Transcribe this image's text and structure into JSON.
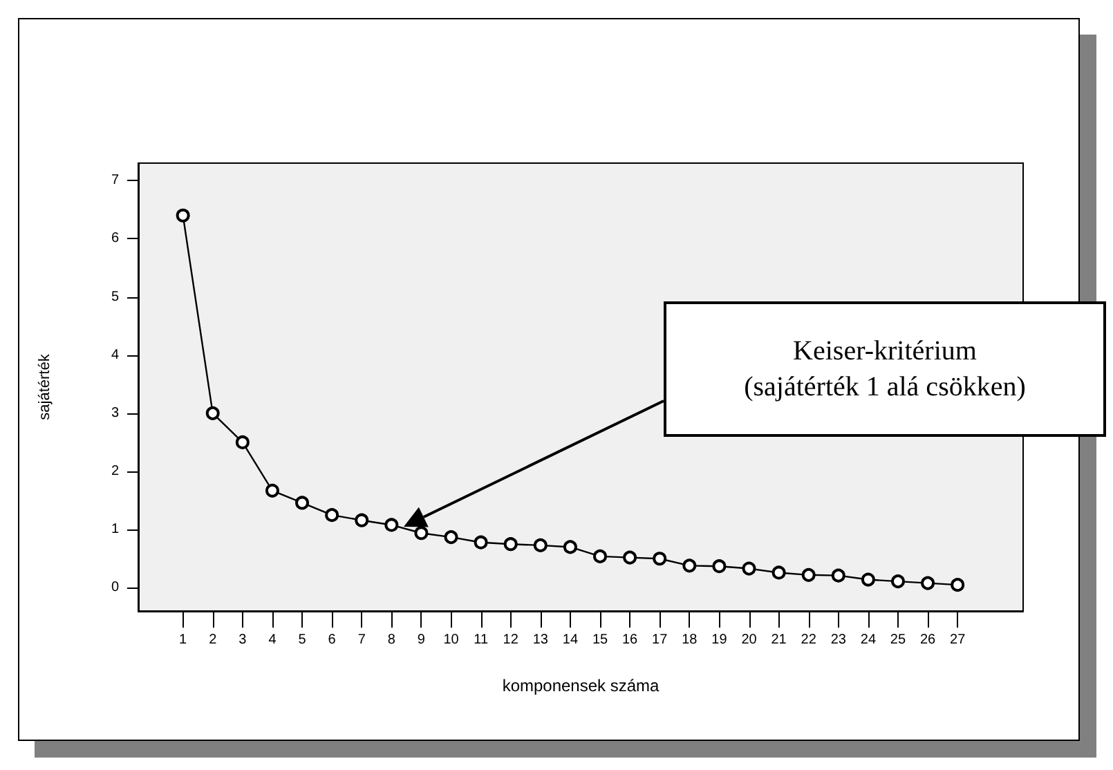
{
  "chart_data": {
    "type": "line",
    "xlabel": "komponensek száma",
    "ylabel": "sajátérték",
    "x": [
      1,
      2,
      3,
      4,
      5,
      6,
      7,
      8,
      9,
      10,
      11,
      12,
      13,
      14,
      15,
      16,
      17,
      18,
      19,
      20,
      21,
      22,
      23,
      24,
      25,
      26,
      27
    ],
    "values": [
      6.4,
      3.0,
      2.5,
      1.67,
      1.46,
      1.25,
      1.16,
      1.08,
      0.94,
      0.87,
      0.78,
      0.75,
      0.73,
      0.7,
      0.54,
      0.52,
      0.5,
      0.38,
      0.37,
      0.33,
      0.26,
      0.22,
      0.21,
      0.14,
      0.11,
      0.08,
      0.05
    ],
    "color": "#000000",
    "marker": "circle",
    "line_style": "solid",
    "grid": false,
    "xlim": [
      -0.5,
      29.2
    ],
    "xticks": [
      1,
      2,
      3,
      4,
      5,
      6,
      7,
      8,
      9,
      10,
      11,
      12,
      13,
      14,
      15,
      16,
      17,
      18,
      19,
      20,
      21,
      22,
      23,
      24,
      25,
      26,
      27
    ],
    "ylim": [
      -0.4,
      7.3
    ],
    "yticks": [
      0,
      1,
      2,
      3,
      4,
      5,
      6,
      7
    ],
    "annotations": [
      "Keiser-kritérium\n(sajátérték 1 alá csökken)"
    ]
  }
}
